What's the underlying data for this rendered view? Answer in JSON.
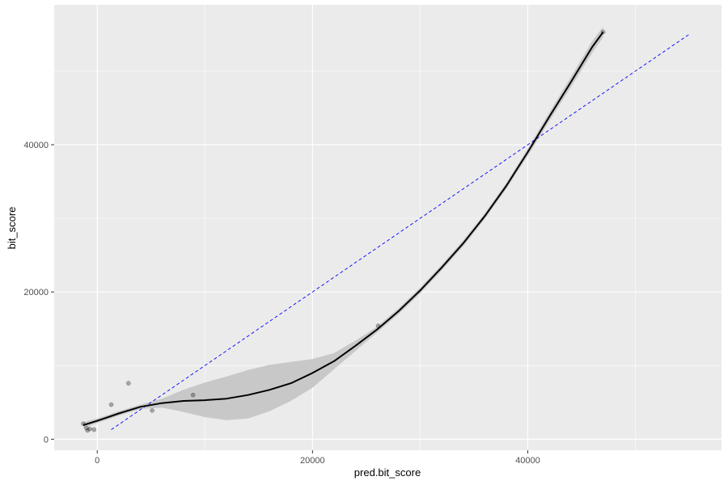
{
  "chart_data": {
    "type": "scatter",
    "title": "",
    "xlabel": "pred.bit_score",
    "ylabel": "bit_score",
    "xlim": [
      -4000,
      58000
    ],
    "ylim": [
      -1500,
      59000
    ],
    "x_ticks": [
      0,
      20000,
      40000
    ],
    "y_ticks": [
      0,
      20000,
      40000
    ],
    "x_tick_labels": [
      "0",
      "20000",
      "40000"
    ],
    "y_tick_labels": [
      "0",
      "20000",
      "40000"
    ],
    "grid": true,
    "legend": "none",
    "colors": {
      "panel": "#ebebeb",
      "grid": "#ffffff",
      "points": "#000000",
      "smooth_line": "#000000",
      "confidence_band": "#c8c8c8",
      "reference_line": "#0000ff",
      "tick_text": "#4d4d4d"
    },
    "points": [
      {
        "x": -1300,
        "y": 2100
      },
      {
        "x": -1000,
        "y": 1500
      },
      {
        "x": -900,
        "y": 1200
      },
      {
        "x": -700,
        "y": 1400
      },
      {
        "x": -300,
        "y": 1300
      },
      {
        "x": 1300,
        "y": 4700
      },
      {
        "x": 2900,
        "y": 7600
      },
      {
        "x": 5100,
        "y": 3900
      },
      {
        "x": 8900,
        "y": 6000
      },
      {
        "x": 26100,
        "y": 15400
      },
      {
        "x": 47000,
        "y": 55300
      }
    ],
    "smooth": {
      "x": [
        -1300,
        0,
        2000,
        4000,
        6000,
        8000,
        10000,
        12000,
        14000,
        16000,
        18000,
        20000,
        22000,
        24000,
        26000,
        28000,
        30000,
        32000,
        34000,
        36000,
        38000,
        40000,
        42000,
        44000,
        46000,
        47000
      ],
      "y": [
        1900,
        2500,
        3500,
        4400,
        4900,
        5200,
        5300,
        5500,
        6000,
        6700,
        7600,
        9000,
        10600,
        12700,
        14900,
        17400,
        20200,
        23300,
        26600,
        30300,
        34400,
        39000,
        43800,
        48500,
        53300,
        55300
      ],
      "lower": [
        1500,
        2200,
        3200,
        4100,
        4300,
        3700,
        3000,
        2600,
        2800,
        3800,
        5200,
        7000,
        9500,
        12000,
        14500,
        17000,
        19800,
        22900,
        26200,
        29900,
        34000,
        38500,
        43200,
        47800,
        52500,
        54600
      ],
      "upper": [
        2300,
        2800,
        3800,
        4700,
        5500,
        6700,
        7700,
        8500,
        9400,
        10100,
        10500,
        10900,
        11700,
        13400,
        15300,
        17800,
        20600,
        23700,
        27000,
        30700,
        34800,
        39500,
        44400,
        49200,
        54100,
        56000
      ]
    },
    "reference_line": {
      "x": [
        1300,
        55000
      ],
      "y": [
        1300,
        55000
      ],
      "style": "dashed"
    }
  }
}
